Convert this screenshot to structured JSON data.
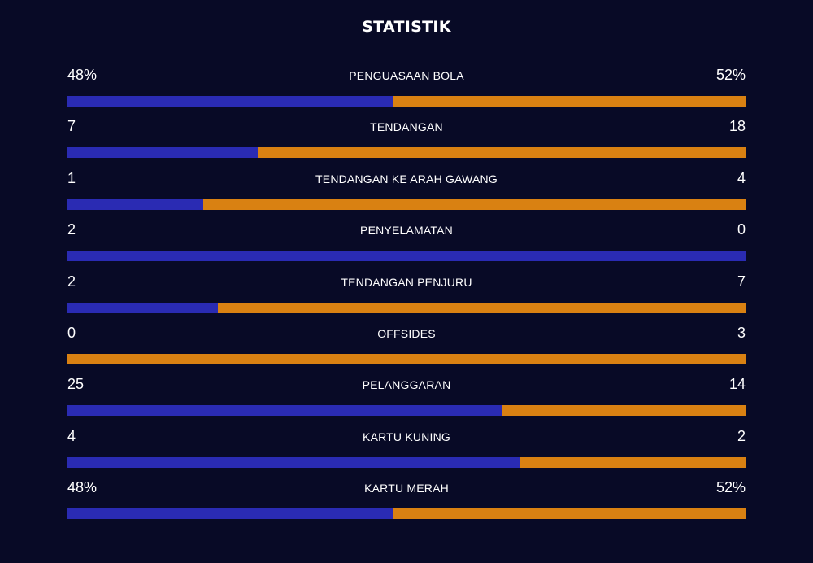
{
  "title": "STATISTIK",
  "colors": {
    "background": "#080a26",
    "home": "#2a2bb3",
    "away": "#d98112"
  },
  "stats": [
    {
      "label": "PENGUASAAN BOLA",
      "home": "48%",
      "away": "52%",
      "home_share": 0.48
    },
    {
      "label": "TENDANGAN",
      "home": "7",
      "away": "18",
      "home_share": 0.28
    },
    {
      "label": "TENDANGAN KE ARAH GAWANG",
      "home": "1",
      "away": "4",
      "home_share": 0.2
    },
    {
      "label": "PENYELAMATAN",
      "home": "2",
      "away": "0",
      "home_share": 1.0
    },
    {
      "label": "TENDANGAN PENJURU",
      "home": "2",
      "away": "7",
      "home_share": 0.222
    },
    {
      "label": "OFFSIDES",
      "home": "0",
      "away": "3",
      "home_share": 0.0
    },
    {
      "label": "PELANGGARAN",
      "home": "25",
      "away": "14",
      "home_share": 0.641
    },
    {
      "label": "KARTU KUNING",
      "home": "4",
      "away": "2",
      "home_share": 0.667
    },
    {
      "label": "KARTU MERAH",
      "home": "48%",
      "away": "52%",
      "home_share": 0.48
    }
  ]
}
